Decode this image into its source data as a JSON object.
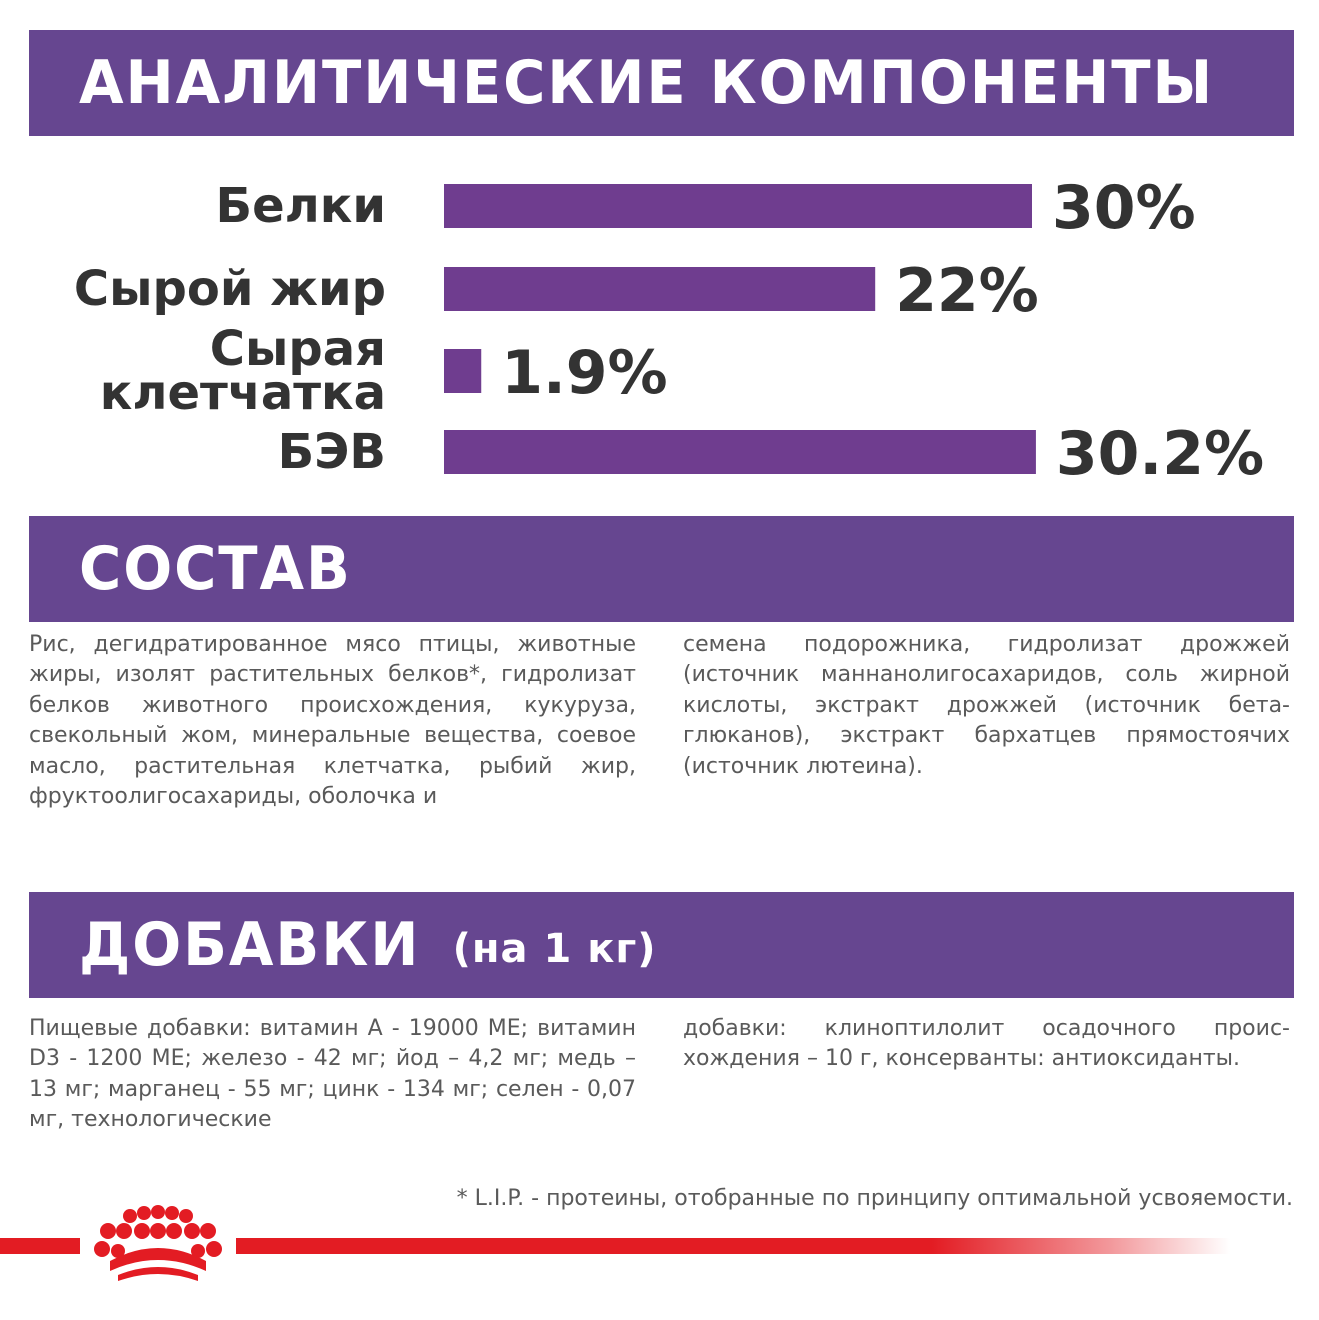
{
  "sections": {
    "analytic_title": "АНАЛИТИЧЕСКИЕ КОМПОНЕНТЫ",
    "composition_title": "СОСТАВ",
    "additives_title": "ДОБАВКИ",
    "additives_subtitle": "(на 1 кг)"
  },
  "chart_data": {
    "type": "bar",
    "orientation": "horizontal",
    "categories": [
      [
        "Белки"
      ],
      [
        "Сырой жир"
      ],
      [
        "Сырая",
        "клетчатка"
      ],
      [
        "БЭВ"
      ]
    ],
    "values": [
      30,
      22,
      1.9,
      30.2
    ],
    "value_labels": [
      "30%",
      "22%",
      "1.9%",
      "30.2%"
    ],
    "bar_color": "#6f3d8f",
    "grid": false,
    "legend": "none"
  },
  "composition": {
    "left": "Рис, дегидратированное мясо птицы, живот­ные жиры, изолят растительных белков*, гидролизат белков животного происхождения, кукуруза, свекольный жом, минеральные веще­ства, соевое масло, растительная клетчатка, рыбий жир, фруктоолигосахариды, оболочка и",
    "right": "семена подорожника, гидролизат дрожжей (источник маннанолигосахаридов, соль жир­ной кислоты, экстракт дрожжей (источник бета-глюканов), экстракт бархатцев прямостоя­чих (источник лютеина)."
  },
  "additives": {
    "left": "Пищевые добавки: витамин А - 19000 МЕ; витамин D3 - 1200 МЕ; железо - 42 мг; йод – 4,2 мг; медь – 13 мг; марганец - 55 мг; цинк - 134 мг; селен - 0,07 мг, технологические",
    "right": "добавки: клиноптилолит осадочного проис­хождения – 10 г, консерванты: антиоксиданты."
  },
  "footnote": "* L.I.P. - протеины, отобранные по принципу оптимальной усвояемости.",
  "colors": {
    "banner": "#664690",
    "bar": "#6f3d8f",
    "brand_red": "#e31c23",
    "text_dark": "#333333",
    "text_body": "#5a5a5a"
  },
  "logo": {
    "icon": "crown-icon"
  }
}
